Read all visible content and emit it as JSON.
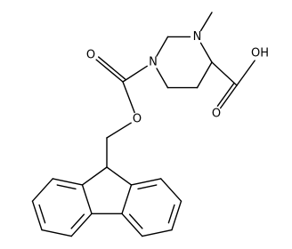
{
  "atoms": {
    "n_ring_methyl": "N",
    "n_ring_carbamate": "N",
    "o_carbamate_carbonyl": "O",
    "o_carbamate_ester": "O",
    "o_acid_carbonyl": "O",
    "o_acid_hydroxyl": "OH"
  }
}
